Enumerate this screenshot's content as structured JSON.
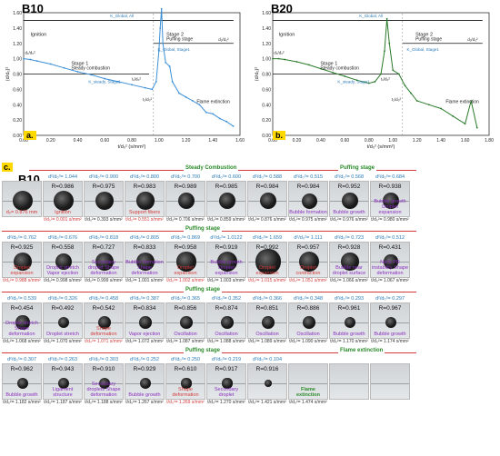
{
  "panels": [
    {
      "id": "a",
      "title": "B10",
      "tag": "a.",
      "ylabel": "(d/d₀)²",
      "xlabel": "t/d₀² (s/mm²)",
      "annotations": {
        "ignition": "Ignition",
        "stage1": "Stage 1",
        "stage1_sub": "Steady combustion",
        "stage2": "Stage 2",
        "stage2_sub": "Puffing stage",
        "flame_ext": "Flame extinction",
        "k_steady": "K_steady, Stage1",
        "k_global_stage1": "K_Global, Stage1",
        "k_global_all": "K_Global, All",
        "ratio1": "d₁/d₀²",
        "ratio2": "d₂/d₀²",
        "ratio3": "t₁/d₀²",
        "ratio4": "t₂/d₀²"
      }
    },
    {
      "id": "b",
      "title": "B20",
      "tag": "b.",
      "ylabel": "(d/d₀)²",
      "xlabel": "t/d₀² (s/mm²)",
      "annotations": {
        "ignition": "Ignition",
        "stage1": "Stage 1",
        "stage1_sub": "Steady combustion",
        "stage2": "Stage 2",
        "stage2_sub": "Puffing stage",
        "flame_ext": "Flame extinction",
        "k_steady": "K_steady, Stage1",
        "k_global_stage1": "K_Global, Stage1",
        "k_global_all": "K_Global, All",
        "ratio1": "d₁/d₀²",
        "ratio2": "d₂/d₀²",
        "ratio3": "t₁/d₀²",
        "ratio4": "t₂/d₀²"
      }
    }
  ],
  "chart_data": [
    {
      "type": "line",
      "title": "B10",
      "xlabel": "t/d₀² (s/mm²)",
      "ylabel": "(d/d₀)²",
      "xlim": [
        0,
        1.6
      ],
      "ylim": [
        0,
        1.6
      ],
      "xticks": [
        "0.00",
        "0.20",
        "0.40",
        "0.60",
        "0.80",
        "1.00",
        "1.20",
        "1.40",
        "1.60"
      ],
      "yticks": [
        "0.00",
        "0.20",
        "0.40",
        "0.60",
        "0.80",
        "1.00",
        "1.20",
        "1.40",
        "1.60"
      ],
      "color": "#3b8fd6",
      "x": [
        0.0,
        0.05,
        0.1,
        0.2,
        0.3,
        0.4,
        0.5,
        0.6,
        0.7,
        0.8,
        0.9,
        0.95,
        0.98,
        1.0,
        1.01,
        1.02,
        1.03,
        1.05,
        1.08,
        1.1,
        1.15,
        1.2,
        1.25,
        1.3,
        1.35,
        1.4,
        1.45,
        1.5,
        1.55
      ],
      "y": [
        1.0,
        0.99,
        0.97,
        0.93,
        0.88,
        0.83,
        0.79,
        0.74,
        0.7,
        0.66,
        0.62,
        0.6,
        0.7,
        1.1,
        1.4,
        1.65,
        1.2,
        0.95,
        0.9,
        0.7,
        0.55,
        0.5,
        0.45,
        0.4,
        0.3,
        0.28,
        0.22,
        0.18,
        0.12
      ]
    },
    {
      "type": "line",
      "title": "B20",
      "xlabel": "t/d₀² (s/mm²)",
      "ylabel": "(d/d₀)²",
      "xlim": [
        0,
        1.8
      ],
      "ylim": [
        0,
        1.6
      ],
      "xticks": [
        "0.00",
        "0.20",
        "0.40",
        "0.60",
        "0.80",
        "1.00",
        "1.20",
        "1.40",
        "1.60",
        "1.80"
      ],
      "yticks": [
        "0.00",
        "0.20",
        "0.40",
        "0.60",
        "0.80",
        "1.00",
        "1.20",
        "1.40",
        "1.60"
      ],
      "color": "#2a7a2a",
      "x": [
        0.0,
        0.05,
        0.1,
        0.2,
        0.3,
        0.4,
        0.5,
        0.6,
        0.7,
        0.8,
        0.85,
        0.9,
        0.93,
        0.95,
        0.97,
        1.0,
        1.05,
        1.1,
        1.15,
        1.2,
        1.3,
        1.4,
        1.5,
        1.6,
        1.65,
        1.7
      ],
      "y": [
        1.0,
        1.0,
        0.99,
        0.96,
        0.92,
        0.87,
        0.82,
        0.77,
        0.72,
        0.68,
        0.7,
        0.8,
        1.1,
        1.52,
        1.2,
        0.85,
        0.8,
        0.65,
        0.55,
        0.45,
        0.4,
        0.35,
        0.25,
        0.15,
        0.45,
        0.1
      ]
    }
  ],
  "section_c": {
    "tag": "c.",
    "title": "B10",
    "rows": [
      {
        "stage": "Steady Combustion",
        "stage_right": "Puffing stage",
        "cells": [
          {
            "dd": "",
            "r": "",
            "ann": "d₀= 0.876 mm",
            "ann_color": "red",
            "t": "",
            "size": 26
          },
          {
            "dd": "d²/d₀²= 1.044",
            "r": "R=0.986",
            "ann": "Ignition",
            "ann_color": "red",
            "t": "t/d₀²= 0.001 s/mm²",
            "size": 26
          },
          {
            "dd": "d²/d₀²= 0.900",
            "r": "R=0.975",
            "ann": "",
            "ann_color": "",
            "t": "t/d₀²= 0.393 s/mm²",
            "size": 24
          },
          {
            "dd": "d²/d₀²= 0.800",
            "r": "R=0.983",
            "ann": "Support fibers",
            "ann_color": "red",
            "t": "t/d₀²= 0.551 s/mm²",
            "size": 23
          },
          {
            "dd": "d²/d₀²= 0.700",
            "r": "R=0.989",
            "ann": "",
            "ann_color": "",
            "t": "t/d₀²= 0.706 s/mm²",
            "size": 22
          },
          {
            "dd": "d²/d₀²= 0.600",
            "r": "R=0.985",
            "ann": "",
            "ann_color": "",
            "t": "t/d₀²= 0.859 s/mm²",
            "size": 21
          },
          {
            "dd": "d²/d₀²= 0.588",
            "r": "R=0.984",
            "ann": "",
            "ann_color": "",
            "t": "t/d₀²= 0.876 s/mm²",
            "size": 21
          },
          {
            "dd": "d²/d₀²= 0.515",
            "r": "R=0.984",
            "ann": "Bubble formation",
            "ann_color": "purple",
            "t": "t/d₀²= 0.975 s/mm²",
            "size": 20
          },
          {
            "dd": "d²/d₀²= 0.568",
            "r": "R=0.952",
            "ann": "Bubble growth",
            "ann_color": "purple",
            "t": "t/d₀²= 0.976 s/mm²",
            "size": 21
          },
          {
            "dd": "d²/d₀²= 0.684",
            "r": "R=0.938",
            "ann": "Bubble growth Droplet expansion",
            "ann_color": "purple",
            "t": "t/d₀²= 0.980 s/mm²",
            "size": 22
          },
          {
            "dd": "",
            "r": "",
            "ann": "",
            "ann_color": "",
            "t": "",
            "size": 0
          },
          {
            "dd": "",
            "r": "",
            "ann": "",
            "ann_color": "",
            "t": "",
            "size": 0
          }
        ]
      },
      {
        "stage": "Puffing stage",
        "stage_right": "",
        "cells": [
          {
            "dd": "d²/d₀²= 0.762",
            "r": "R=0.925",
            "ann": "Droplet expansion",
            "ann_color": "red",
            "t": "t/d₀²= 0.988 s/mm²",
            "size": 24
          },
          {
            "dd": "d²/d₀²= 0.676",
            "r": "R=0.558",
            "ann": "Droplet stretch Vapor ejection",
            "ann_color": "purple",
            "t": "t/d₀²= 0.998 s/mm²",
            "size": 22
          },
          {
            "dd": "d²/d₀²= 0.818",
            "r": "R=0.727",
            "ann": "Secondary droplet Shape deformation",
            "ann_color": "purple",
            "t": "t/d₀²= 0.999 s/mm²",
            "size": 24
          },
          {
            "dd": "d²/d₀²= 0.805",
            "r": "R=0.833",
            "ann": "Bubble formation Shape deformation",
            "ann_color": "purple",
            "t": "t/d₀²= 1.001 s/mm²",
            "size": 24
          },
          {
            "dd": "d²/d₀²= 0.869",
            "r": "R=0.958",
            "ann": "Droplet expansion",
            "ann_color": "red",
            "t": "t/d₀²= 1.002 s/mm²",
            "size": 25
          },
          {
            "dd": "d²/d₀²= 1.0122",
            "r": "R=0.919",
            "ann": "Bubble growth Droplet expansion",
            "ann_color": "purple",
            "t": "t/d₀²= 1.003 s/mm²",
            "size": 27
          },
          {
            "dd": "d²/d₀²= 1.659",
            "r": "R=0.992",
            "ann": "Droplet expansion",
            "ann_color": "red",
            "t": "t/d₀²= 1.015 s/mm²",
            "size": 32
          },
          {
            "dd": "d²/d₀²= 1.111",
            "r": "R=0.957",
            "ann": "Droplet contraction",
            "ann_color": "red",
            "t": "t/d₀²= 1.051 s/mm²",
            "size": 27
          },
          {
            "dd": "d²/d₀²= 0.723",
            "r": "R=0.928",
            "ann": "Bubble near droplet surface",
            "ann_color": "purple",
            "t": "t/d₀²= 1.066 s/mm²",
            "size": 23
          },
          {
            "dd": "d²/d₀²= 0.512",
            "r": "R=0.431",
            "ann": "Neck PR instability Shape deformation",
            "ann_color": "purple",
            "t": "t/d₀²= 1.067 s/mm²",
            "size": 18
          },
          {
            "dd": "",
            "r": "",
            "ann": "",
            "ann_color": "",
            "t": "",
            "size": 0
          },
          {
            "dd": "",
            "r": "",
            "ann": "",
            "ann_color": "",
            "t": "",
            "size": 0
          }
        ]
      },
      {
        "stage": "Puffing stage",
        "stage_right": "",
        "cells": [
          {
            "dd": "d²/d₀²= 0.539",
            "r": "R=0.454",
            "ann": "Droplet stretch Shape deformation",
            "ann_color": "purple",
            "t": "t/d₀²= 1.068 s/mm²",
            "size": 18
          },
          {
            "dd": "d²/d₀²= 0.326",
            "r": "R=0.492",
            "ann": "Droplet stretch",
            "ann_color": "purple",
            "t": "t/d₀²= 1.070 s/mm²",
            "size": 15
          },
          {
            "dd": "d²/d₀²= 0.458",
            "r": "R=0.542",
            "ann": "Shape deformation",
            "ann_color": "red",
            "t": "t/d₀²= 1.071 s/mm²",
            "size": 17
          },
          {
            "dd": "d²/d₀²= 0.387",
            "r": "R=0.834",
            "ann": "Vapor ejection",
            "ann_color": "purple",
            "t": "t/d₀²= 1.072 s/mm²",
            "size": 16
          },
          {
            "dd": "d²/d₀²= 0.365",
            "r": "R=0.856",
            "ann": "Oscillation",
            "ann_color": "purple",
            "t": "t/d₀²= 1.087 s/mm²",
            "size": 16
          },
          {
            "dd": "d²/d₀²= 0.352",
            "r": "R=0.874",
            "ann": "Oscillation",
            "ann_color": "purple",
            "t": "t/d₀²= 1.088 s/mm²",
            "size": 16
          },
          {
            "dd": "d²/d₀²= 0.366",
            "r": "R=0.851",
            "ann": "Oscillation",
            "ann_color": "purple",
            "t": "t/d₀²= 1.089 s/mm²",
            "size": 16
          },
          {
            "dd": "d²/d₀²= 0.348",
            "r": "R=0.886",
            "ann": "Oscillation",
            "ann_color": "purple",
            "t": "t/d₀²= 1.090 s/mm²",
            "size": 16
          },
          {
            "dd": "d²/d₀²= 0.293",
            "r": "R=0.961",
            "ann": "Bubble growth",
            "ann_color": "purple",
            "t": "t/d₀²= 1.170 s/mm²",
            "size": 15
          },
          {
            "dd": "d²/d₀²= 0.297",
            "r": "R=0.967",
            "ann": "Bubble growth",
            "ann_color": "purple",
            "t": "t/d₀²= 1.174 s/mm²",
            "size": 15
          },
          {
            "dd": "",
            "r": "",
            "ann": "",
            "ann_color": "",
            "t": "",
            "size": 0
          },
          {
            "dd": "",
            "r": "",
            "ann": "",
            "ann_color": "",
            "t": "",
            "size": 0
          }
        ]
      },
      {
        "stage": "Puffing stage",
        "stage_right": "Flame extinction",
        "cells": [
          {
            "dd": "d²/d₀²= 0.307",
            "r": "R=0.962",
            "ann": "Bubble growth",
            "ann_color": "purple",
            "t": "t/d₀²= 1.182 s/mm²",
            "size": 15
          },
          {
            "dd": "d²/d₀²= 0.263",
            "r": "R=0.943",
            "ann": "Ligament structure",
            "ann_color": "purple",
            "t": "t/d₀²= 1.187 s/mm²",
            "size": 14
          },
          {
            "dd": "d²/d₀²= 0.303",
            "r": "R=0.910",
            "ann": "Secondary droplets Shape deformation",
            "ann_color": "purple",
            "t": "t/d₀²= 1.188 s/mm²",
            "size": 15
          },
          {
            "dd": "d²/d₀²= 0.252",
            "r": "R=0.929",
            "ann": "Bubble growth",
            "ann_color": "purple",
            "t": "t/d₀²= 1.267 s/mm²",
            "size": 14
          },
          {
            "dd": "d²/d₀²= 0.250",
            "r": "R=0.610",
            "ann": "Shape deformation",
            "ann_color": "red",
            "t": "t/d₀²= 1.269 s/mm²",
            "size": 13
          },
          {
            "dd": "d²/d₀²= 0.219",
            "r": "R=0.917",
            "ann": "Secondary droplet",
            "ann_color": "purple",
            "t": "t/d₀²= 1.270 s/mm²",
            "size": 13
          },
          {
            "dd": "d²/d₀²= 0.104",
            "r": "R=0.916",
            "ann": "",
            "ann_color": "",
            "t": "t/d₀²= 1.421 s/mm²",
            "size": 9
          },
          {
            "dd": "",
            "r": "",
            "ann": "Flame extinction",
            "ann_color": "green",
            "t": "t/d₀²= 1.474 s/mm²",
            "size": 0
          },
          {
            "dd": "",
            "r": "",
            "ann": "",
            "ann_color": "",
            "t": "",
            "size": 0
          },
          {
            "dd": "",
            "r": "",
            "ann": "",
            "ann_color": "",
            "t": "",
            "size": 0
          },
          {
            "dd": "",
            "r": "",
            "ann": "",
            "ann_color": "",
            "t": "",
            "size": 0
          },
          {
            "dd": "",
            "r": "",
            "ann": "",
            "ann_color": "",
            "t": "",
            "size": 0
          }
        ]
      }
    ]
  }
}
